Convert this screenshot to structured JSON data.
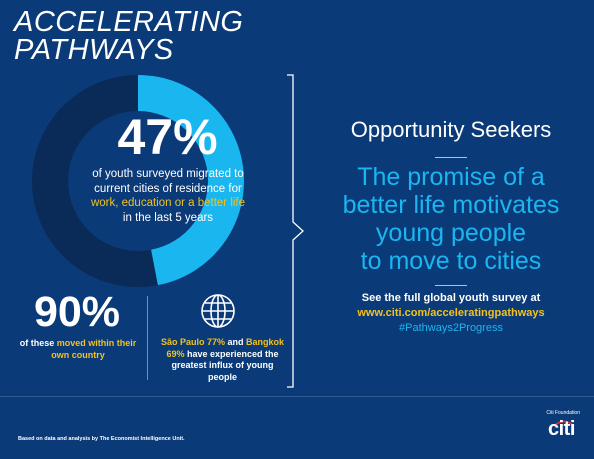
{
  "title": {
    "line1": "ACCELERATING",
    "line2": "PATHWAYS"
  },
  "colors": {
    "background": "#0b3a78",
    "accent_blue": "#1ab6f0",
    "accent_yellow": "#f3c21c",
    "donut_remainder": "#0a2a57"
  },
  "chart_data": {
    "type": "pie",
    "values": [
      47,
      53
    ],
    "title": ""
  },
  "stat_main": {
    "value": "47%",
    "desc_part1": "of youth surveyed migrated to current cities of residence for ",
    "desc_highlight": "work, education or a better life",
    "desc_part2": " in the last 5 years"
  },
  "stat_secondary": {
    "value": "90%",
    "desc_part1": "of these ",
    "desc_highlight": "moved within their own country"
  },
  "cities": {
    "icon": "globe-icon",
    "city1": "São Paulo 77%",
    "and": " and ",
    "city2": "Bangkok 69%",
    "rest": " have experienced the greatest influx of young people"
  },
  "right": {
    "heading": "Opportunity Seekers",
    "promise_line1": "The promise of a",
    "promise_line2": "better life motivates",
    "promise_line3": "young people",
    "promise_line4": "to move to cities",
    "survey_text": "See the full global youth survey at",
    "url": "www.citi.com/acceleratingpathways",
    "hashtag": "#Pathways2Progress"
  },
  "footer": {
    "note": "Based on data and analysis by The Economist Intelligence Unit.",
    "foundation": "Citi Foundation",
    "logo": "citi"
  }
}
